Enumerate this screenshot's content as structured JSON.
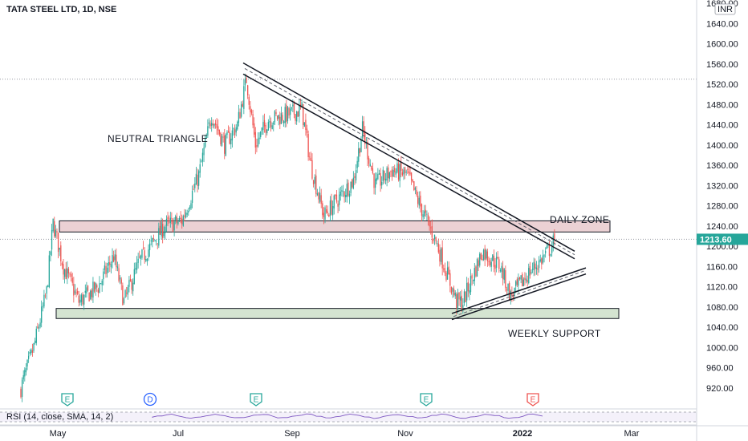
{
  "header": {
    "title": "TATA STEEL LTD, 1D, NSE",
    "currency": "INR",
    "last_price": "1213.60"
  },
  "rsi": {
    "label": "RSI (14, close, SMA, 14, 2)"
  },
  "colors": {
    "up": "#26a69a",
    "down": "#ef5350",
    "daily_zone": "#e8c9cc",
    "weekly_zone": "#cddfc9",
    "price_tag": "#26a69a",
    "event_green": "#26a69a",
    "event_blue": "#2962ff",
    "event_red": "#ef5350"
  },
  "chart_data": {
    "type": "candlestick",
    "title": "TATA STEEL LTD, 1D, NSE",
    "ylabel": "INR",
    "ylim": [
      880,
      1680
    ],
    "y_ticks": [
      "1680.00",
      "1640.00",
      "1600.00",
      "1560.00",
      "1520.00",
      "1480.00",
      "1440.00",
      "1400.00",
      "1360.00",
      "1320.00",
      "1280.00",
      "1240.00",
      "1200.00",
      "1160.00",
      "1120.00",
      "1080.00",
      "1040.00",
      "1000.00",
      "960.00",
      "920.00"
    ],
    "x_ticks": [
      "May",
      "Jul",
      "Sep",
      "Nov",
      "2022",
      "Mar"
    ],
    "last_price": 1213.6,
    "price_path": [
      [
        0,
        920
      ],
      [
        10,
        1000
      ],
      [
        20,
        1110
      ],
      [
        25,
        1245
      ],
      [
        33,
        1160
      ],
      [
        45,
        1090
      ],
      [
        60,
        1120
      ],
      [
        72,
        1180
      ],
      [
        80,
        1090
      ],
      [
        92,
        1170
      ],
      [
        112,
        1240
      ],
      [
        125,
        1250
      ],
      [
        138,
        1340
      ],
      [
        148,
        1460
      ],
      [
        158,
        1400
      ],
      [
        168,
        1440
      ],
      [
        175,
        1530
      ],
      [
        182,
        1400
      ],
      [
        192,
        1450
      ],
      [
        208,
        1460
      ],
      [
        218,
        1470
      ],
      [
        225,
        1360
      ],
      [
        235,
        1260
      ],
      [
        245,
        1290
      ],
      [
        258,
        1330
      ],
      [
        265,
        1430
      ],
      [
        275,
        1320
      ],
      [
        288,
        1350
      ],
      [
        300,
        1340
      ],
      [
        308,
        1290
      ],
      [
        322,
        1210
      ],
      [
        338,
        1090
      ],
      [
        343,
        1090
      ],
      [
        358,
        1190
      ],
      [
        372,
        1160
      ],
      [
        380,
        1100
      ],
      [
        395,
        1150
      ],
      [
        403,
        1170
      ],
      [
        412,
        1200
      ],
      [
        414,
        1213.6
      ]
    ],
    "annotations": [
      {
        "text": "NEUTRAL TRIANGLE"
      },
      {
        "text": "DAILY ZONE"
      },
      {
        "text": "WEEKLY SUPPORT"
      }
    ],
    "zones": [
      {
        "name": "DAILY ZONE",
        "low": 1228,
        "high": 1250
      },
      {
        "name": "WEEKLY SUPPORT",
        "low": 1057,
        "high": 1077
      }
    ],
    "trendlines": [
      {
        "points": [
          [
            1562,
            0
          ],
          [
            1190,
            360
          ]
        ]
      },
      {
        "points": [
          [
            1540,
            4
          ],
          [
            1175,
            356
          ]
        ]
      },
      {
        "points": [
          [
            1067,
            0
          ],
          [
            1157,
            265
          ]
        ]
      },
      {
        "points": [
          [
            1055,
            0
          ],
          [
            1145,
            260
          ]
        ]
      }
    ],
    "reference_lines": [
      1530,
      1213.6
    ],
    "events": [
      {
        "letter": "E"
      },
      {
        "letter": "D"
      },
      {
        "letter": "E"
      },
      {
        "letter": "E"
      },
      {
        "letter": "E"
      }
    ]
  }
}
